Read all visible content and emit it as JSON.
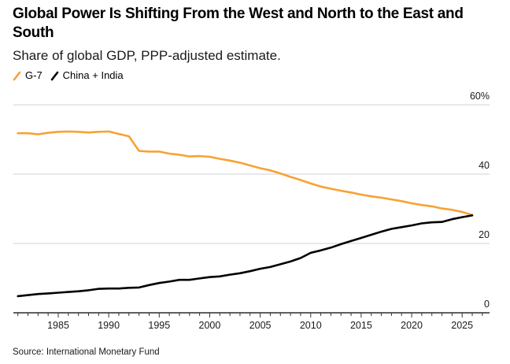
{
  "header": {
    "title": "Global Power Is Shifting From the West and North to the East and South",
    "subtitle": "Share of global GDP, PPP-adjusted estimate."
  },
  "legend": [
    {
      "label": "G-7",
      "color": "#f7a234"
    },
    {
      "label": "China + India",
      "color": "#000000"
    }
  ],
  "footer": {
    "source": "Source: International Monetary Fund"
  },
  "chart_data": {
    "type": "line",
    "title": "Global Power Is Shifting From the West and North to the East and South",
    "subtitle": "Share of global GDP, PPP-adjusted estimate.",
    "xlabel": "",
    "ylabel": "",
    "x": [
      1981,
      1982,
      1983,
      1984,
      1985,
      1986,
      1987,
      1988,
      1989,
      1990,
      1991,
      1992,
      1993,
      1994,
      1995,
      1996,
      1997,
      1998,
      1999,
      2000,
      2001,
      2002,
      2003,
      2004,
      2005,
      2006,
      2007,
      2008,
      2009,
      2010,
      2011,
      2012,
      2013,
      2014,
      2015,
      2016,
      2017,
      2018,
      2019,
      2020,
      2021,
      2022,
      2023,
      2024,
      2025,
      2026
    ],
    "series": [
      {
        "name": "G-7",
        "color": "#f7a234",
        "values": [
          51.8,
          51.8,
          51.5,
          51.9,
          52.2,
          52.3,
          52.2,
          52.0,
          52.2,
          52.3,
          51.6,
          50.9,
          46.7,
          46.5,
          46.5,
          45.9,
          45.6,
          45.1,
          45.2,
          45.0,
          44.4,
          43.9,
          43.3,
          42.5,
          41.7,
          41.1,
          40.2,
          39.2,
          38.3,
          37.3,
          36.4,
          35.8,
          35.2,
          34.7,
          34.1,
          33.6,
          33.2,
          32.7,
          32.2,
          31.6,
          31.1,
          30.7,
          30.1,
          29.7,
          29.1,
          28.2
        ]
      },
      {
        "name": "China + India",
        "color": "#000000",
        "values": [
          4.8,
          5.1,
          5.4,
          5.6,
          5.8,
          6.0,
          6.2,
          6.5,
          6.9,
          7.0,
          7.0,
          7.2,
          7.3,
          8.0,
          8.6,
          9.0,
          9.5,
          9.5,
          9.9,
          10.3,
          10.5,
          11.0,
          11.4,
          12.0,
          12.7,
          13.2,
          14.0,
          14.8,
          15.8,
          17.3,
          18.0,
          18.8,
          19.8,
          20.7,
          21.6,
          22.5,
          23.4,
          24.2,
          24.7,
          25.2,
          25.8,
          26.1,
          26.2,
          27.0,
          27.6,
          28.1
        ]
      }
    ],
    "yticks": [
      0,
      20,
      40,
      60
    ],
    "ytick_labels": [
      "0",
      "20",
      "40",
      "60%"
    ],
    "xticks": [
      1985,
      1990,
      1995,
      2000,
      2005,
      2010,
      2015,
      2020,
      2025
    ],
    "xtick_labels": [
      "1985",
      "1990",
      "1995",
      "2000",
      "2005",
      "2010",
      "2015",
      "2020",
      "2025"
    ],
    "xlim": [
      1980.5,
      2028
    ],
    "ylim": [
      0,
      60
    ],
    "grid": true,
    "y_axis_side": "right",
    "legend_position": "top-left"
  }
}
